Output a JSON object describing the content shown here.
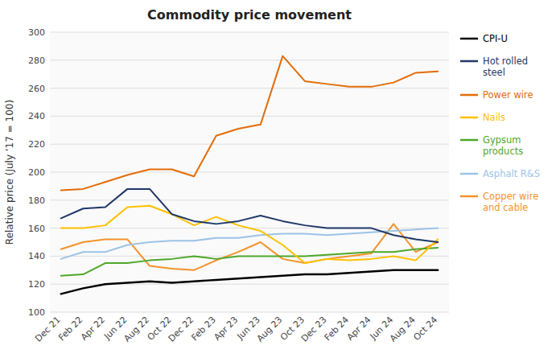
{
  "chart_data": {
    "type": "line",
    "title": "Commodity price movement",
    "ylabel": "Relative price (July ’17 = 100)",
    "categories": [
      "Dec 21",
      "Feb 22",
      "Apr 22",
      "Jun 22",
      "Aug 22",
      "Oct 22",
      "Dec 22",
      "Feb 23",
      "Apr 23",
      "Jun 23",
      "Aug 23",
      "Oct 23",
      "Dec 23",
      "Feb 24",
      "Apr 24",
      "Jun 24",
      "Aug 24",
      "Oct 24"
    ],
    "ylim": [
      100,
      300
    ],
    "yticks": [
      100,
      120,
      140,
      160,
      180,
      200,
      220,
      240,
      260,
      280,
      300
    ],
    "grid": true,
    "legend": "right",
    "series": [
      {
        "name": "CPI-U",
        "color": "#000000",
        "values": [
          113,
          117,
          120,
          121,
          122,
          121,
          122,
          123,
          124,
          125,
          126,
          127,
          127,
          128,
          129,
          130,
          130,
          130
        ]
      },
      {
        "name": "Hot rolled\nsteel",
        "color": "#1f3868",
        "values": [
          167,
          174,
          175,
          188,
          188,
          170,
          165,
          163,
          165,
          169,
          165,
          162,
          160,
          160,
          160,
          155,
          152,
          150
        ]
      },
      {
        "name": "Power wire",
        "color": "#e36c09",
        "values": [
          187,
          188,
          193,
          198,
          202,
          202,
          197,
          226,
          231,
          234,
          283,
          265,
          263,
          261,
          261,
          264,
          271,
          272
        ]
      },
      {
        "name": "Nails",
        "color": "#ffc000",
        "values": [
          160,
          160,
          162,
          175,
          176,
          170,
          162,
          168,
          162,
          158,
          148,
          135,
          138,
          137,
          138,
          140,
          137,
          152
        ]
      },
      {
        "name": "Gypsum\nproducts",
        "color": "#4ea72a",
        "values": [
          126,
          127,
          135,
          135,
          137,
          138,
          140,
          138,
          140,
          140,
          140,
          140,
          141,
          142,
          143,
          143,
          145,
          146
        ]
      },
      {
        "name": "Asphalt R&S",
        "color": "#9dc3e6",
        "values": [
          138,
          143,
          143,
          148,
          150,
          151,
          151,
          153,
          153,
          155,
          156,
          156,
          155,
          156,
          157,
          158,
          159,
          160
        ]
      },
      {
        "name": "Copper wire\nand cable",
        "color": "#f4922a",
        "values": [
          145,
          150,
          152,
          152,
          133,
          131,
          130,
          137,
          143,
          150,
          138,
          135,
          138,
          140,
          142,
          163,
          143,
          150
        ]
      }
    ]
  }
}
